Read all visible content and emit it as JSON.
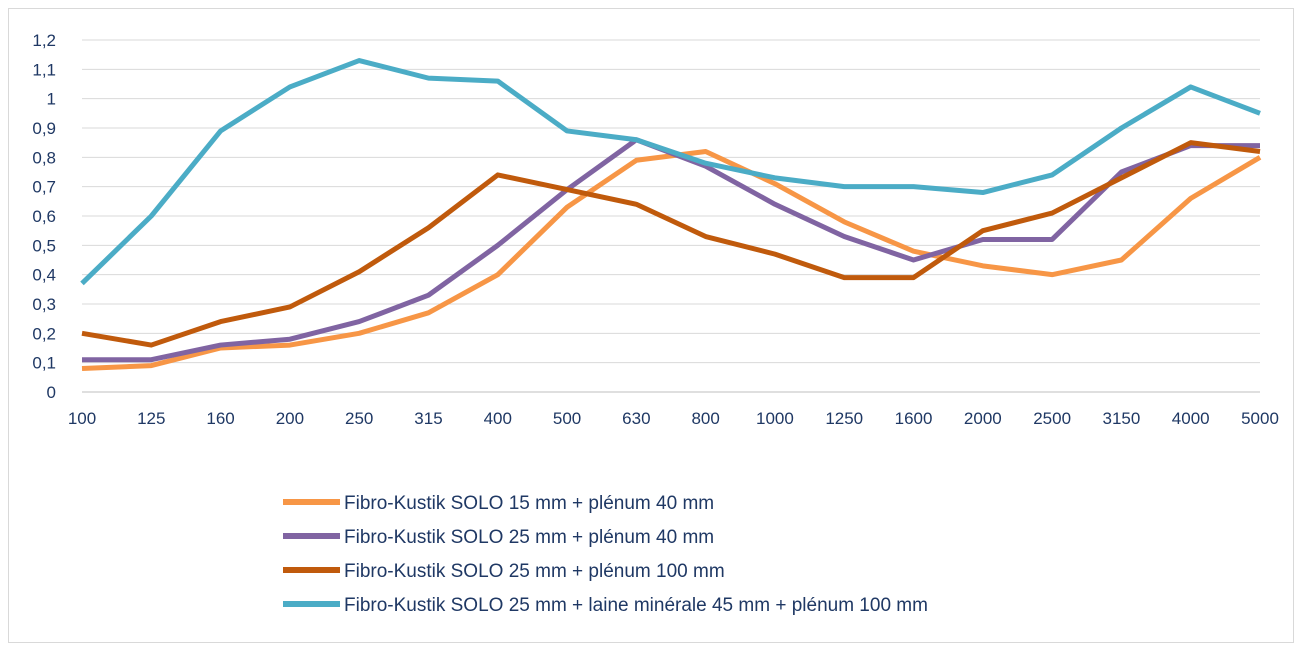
{
  "chart_data": {
    "type": "line",
    "title": "",
    "xlabel": "",
    "ylabel": "",
    "categories": [
      "100",
      "125",
      "160",
      "200",
      "250",
      "315",
      "400",
      "500",
      "630",
      "800",
      "1000",
      "1250",
      "1600",
      "2000",
      "2500",
      "3150",
      "4000",
      "5000"
    ],
    "y_ticks": [
      "0",
      "0,1",
      "0,2",
      "0,3",
      "0,4",
      "0,5",
      "0,6",
      "0,7",
      "0,8",
      "0,9",
      "1",
      "1,1",
      "1,2"
    ],
    "ylim": [
      0,
      1.2
    ],
    "grid": "horizontal",
    "legend_position": "bottom",
    "series": [
      {
        "name": "Fibro-Kustik SOLO 15 mm + plénum 40 mm",
        "color": "#F79646",
        "values": [
          0.08,
          0.09,
          0.15,
          0.16,
          0.2,
          0.27,
          0.4,
          0.63,
          0.79,
          0.82,
          0.71,
          0.58,
          0.48,
          0.43,
          0.4,
          0.45,
          0.66,
          0.8
        ]
      },
      {
        "name": "Fibro-Kustik SOLO 25 mm + plénum 40 mm",
        "color": "#8064A2",
        "values": [
          0.11,
          0.11,
          0.16,
          0.18,
          0.24,
          0.33,
          0.5,
          0.69,
          0.86,
          0.77,
          0.64,
          0.53,
          0.45,
          0.52,
          0.52,
          0.75,
          0.84,
          0.84
        ]
      },
      {
        "name": "Fibro-Kustik SOLO 25 mm + plénum 100 mm",
        "color": "#C05A0C",
        "values": [
          0.2,
          0.16,
          0.24,
          0.29,
          0.41,
          0.56,
          0.74,
          0.69,
          0.64,
          0.53,
          0.47,
          0.39,
          0.39,
          0.55,
          0.61,
          0.73,
          0.85,
          0.82
        ]
      },
      {
        "name": "Fibro-Kustik SOLO 25 mm + laine minérale 45 mm + plénum 100 mm",
        "color": "#4BACC6",
        "values": [
          0.37,
          0.6,
          0.89,
          1.04,
          1.13,
          1.07,
          1.06,
          0.89,
          0.86,
          0.78,
          0.73,
          0.7,
          0.7,
          0.68,
          0.74,
          0.9,
          1.04,
          0.95
        ]
      }
    ]
  }
}
